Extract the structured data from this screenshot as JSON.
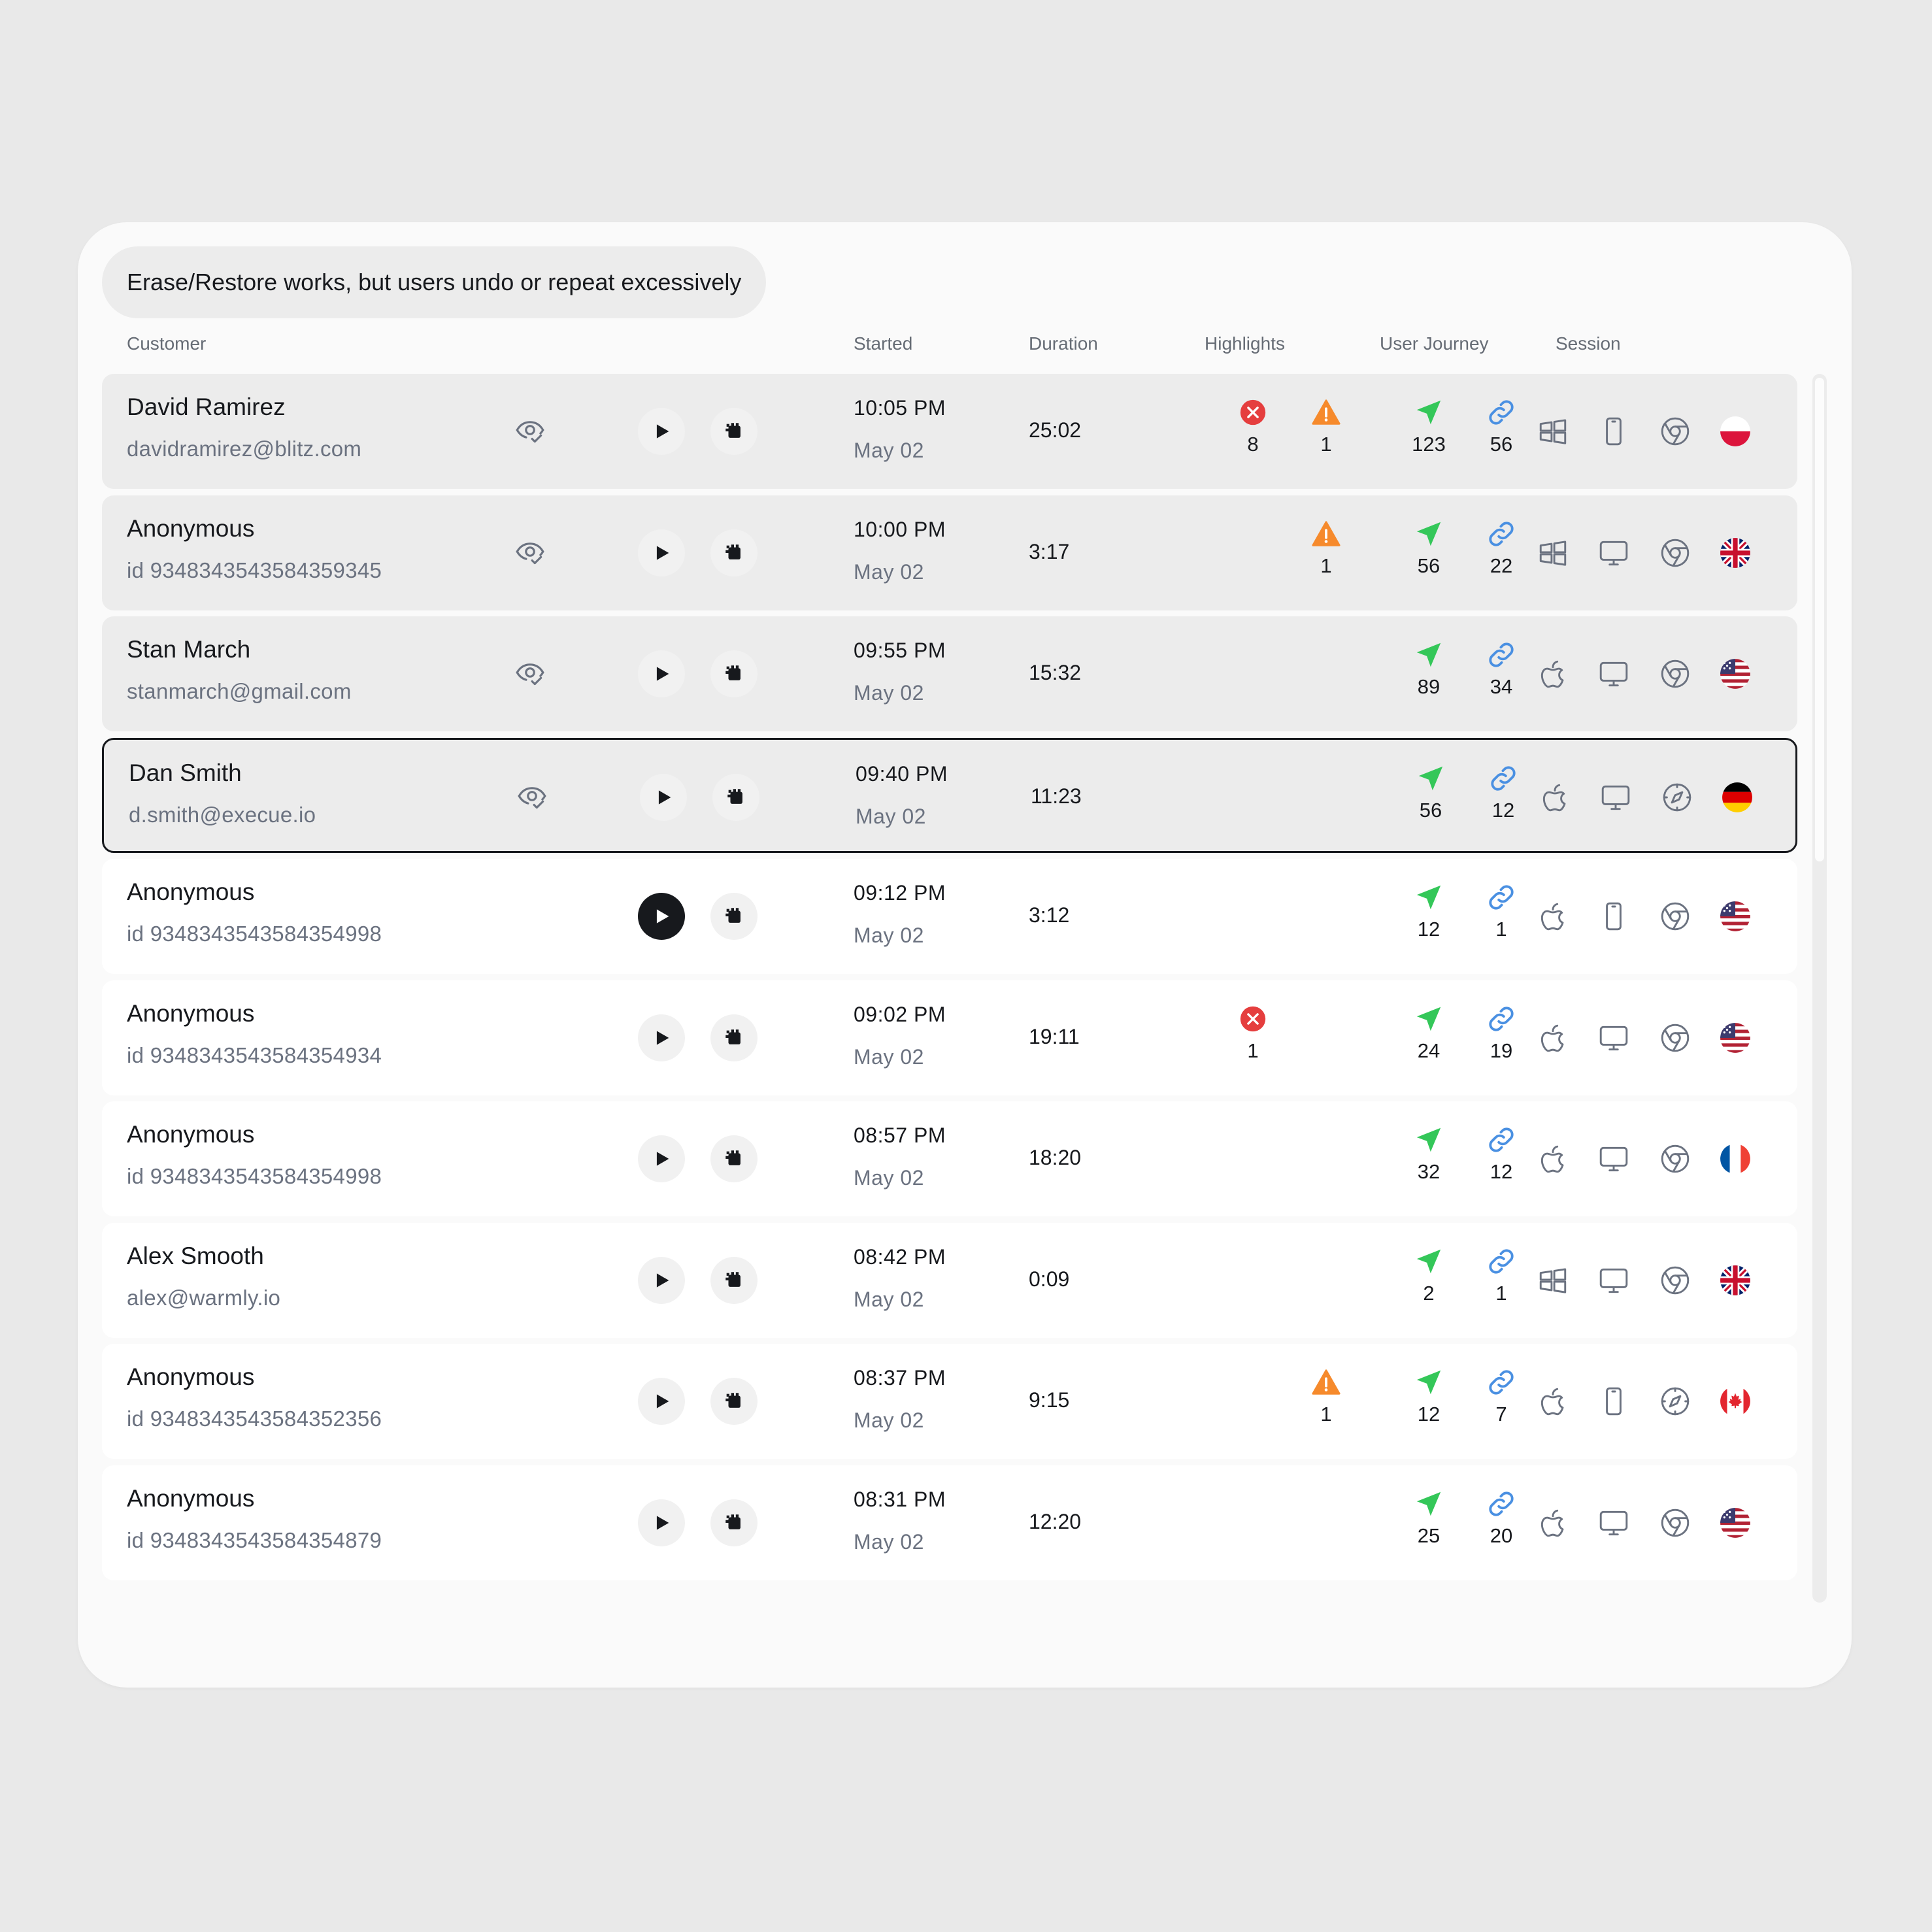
{
  "banner": "Erase/Restore works, but users undo or repeat excessively",
  "columns": {
    "customer": "Customer",
    "started": "Started",
    "duration": "Duration",
    "highlights": "Highlights",
    "user_journey": "User Journey",
    "session": "Session"
  },
  "colors": {
    "error": "#e53e3e",
    "warning": "#f68a2c",
    "journey_arrow": "#34c759",
    "link": "#4a90e2",
    "selected_border": "#17191d"
  },
  "rows": [
    {
      "name": "David Ramirez",
      "sub": "davidramirez@blitz.com",
      "time": "10:05 PM",
      "date": "May 02",
      "duration": "25:02",
      "errors": "8",
      "warnings": "1",
      "journey": "123",
      "links": "56",
      "os": "windows-icon",
      "device": "mobile-icon",
      "browser": "chrome-icon",
      "flag": "flag-poland-icon",
      "watched": true,
      "bg": "grey"
    },
    {
      "name": "Anonymous",
      "sub": "id 9348343543584359345",
      "time": "10:00 PM",
      "date": "May 02",
      "duration": "3:17",
      "errors": "",
      "warnings": "1",
      "journey": "56",
      "links": "22",
      "os": "windows-icon",
      "device": "desktop-icon",
      "browser": "chrome-icon",
      "flag": "flag-uk-icon",
      "watched": true,
      "bg": "grey"
    },
    {
      "name": "Stan March",
      "sub": "stanmarch@gmail.com",
      "time": "09:55 PM",
      "date": "May 02",
      "duration": "15:32",
      "errors": "",
      "warnings": "",
      "journey": "89",
      "links": "34",
      "os": "apple-icon",
      "device": "desktop-icon",
      "browser": "chrome-icon",
      "flag": "flag-usa-icon",
      "watched": true,
      "bg": "grey"
    },
    {
      "name": "Dan Smith",
      "sub": "d.smith@execue.io",
      "time": "09:40 PM",
      "date": "May 02",
      "duration": "11:23",
      "errors": "",
      "warnings": "",
      "journey": "56",
      "links": "12",
      "os": "apple-icon",
      "device": "desktop-icon",
      "browser": "safari-icon",
      "flag": "flag-germany-icon",
      "watched": true,
      "bg": "sel"
    },
    {
      "name": "Anonymous",
      "sub": "id 9348343543584354998",
      "time": "09:12 PM",
      "date": "May 02",
      "duration": "3:12",
      "errors": "",
      "warnings": "",
      "journey": "12",
      "links": "1",
      "os": "apple-icon",
      "device": "mobile-icon",
      "browser": "chrome-icon",
      "flag": "flag-usa-icon",
      "watched": false,
      "bg": "white",
      "dark_play": true
    },
    {
      "name": "Anonymous",
      "sub": "id 9348343543584354934",
      "time": "09:02 PM",
      "date": "May 02",
      "duration": "19:11",
      "errors": "1",
      "warnings": "",
      "journey": "24",
      "links": "19",
      "os": "apple-icon",
      "device": "desktop-icon",
      "browser": "chrome-icon",
      "flag": "flag-usa-icon",
      "watched": false,
      "bg": "white"
    },
    {
      "name": "Anonymous",
      "sub": "id 9348343543584354998",
      "time": "08:57 PM",
      "date": "May 02",
      "duration": "18:20",
      "errors": "",
      "warnings": "",
      "journey": "32",
      "links": "12",
      "os": "apple-icon",
      "device": "desktop-icon",
      "browser": "chrome-icon",
      "flag": "flag-france-icon",
      "watched": false,
      "bg": "white"
    },
    {
      "name": "Alex Smooth",
      "sub": "alex@warmly.io",
      "time": "08:42 PM",
      "date": "May 02",
      "duration": "0:09",
      "errors": "",
      "warnings": "",
      "journey": "2",
      "links": "1",
      "os": "windows-icon",
      "device": "desktop-icon",
      "browser": "chrome-icon",
      "flag": "flag-uk-icon",
      "watched": false,
      "bg": "white"
    },
    {
      "name": "Anonymous",
      "sub": "id 9348343543584352356",
      "time": "08:37 PM",
      "date": "May 02",
      "duration": "9:15",
      "errors": "",
      "warnings": "1",
      "journey": "12",
      "links": "7",
      "os": "apple-icon",
      "device": "mobile-icon",
      "browser": "safari-icon",
      "flag": "flag-canada-icon",
      "watched": false,
      "bg": "white"
    },
    {
      "name": "Anonymous",
      "sub": "id 9348343543584354879",
      "time": "08:31 PM",
      "date": "May 02",
      "duration": "12:20",
      "errors": "",
      "warnings": "",
      "journey": "25",
      "links": "20",
      "os": "apple-icon",
      "device": "desktop-icon",
      "browser": "chrome-icon",
      "flag": "flag-usa-icon",
      "watched": false,
      "bg": "white"
    }
  ]
}
